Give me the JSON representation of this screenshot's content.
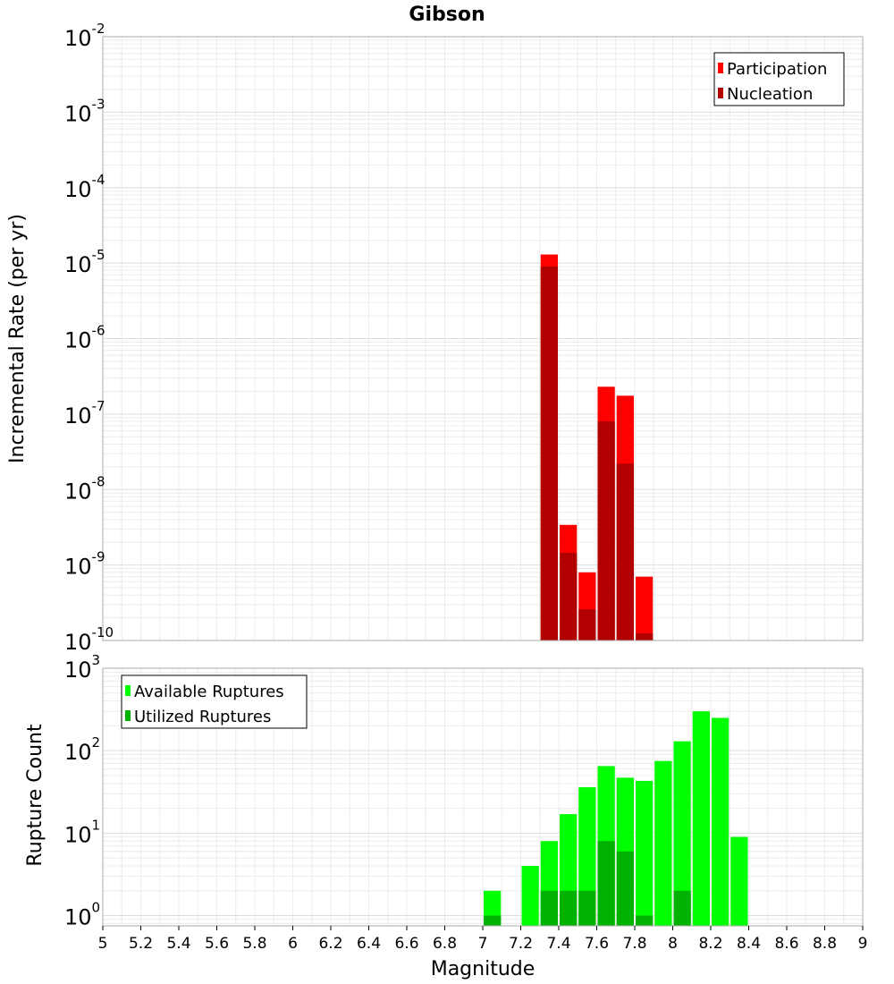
{
  "chart_data": [
    {
      "type": "bar",
      "title": "Gibson",
      "ylabel": "Incremental Rate (per yr)",
      "yscale": "log",
      "ylim": [
        1e-10,
        0.01
      ],
      "xlim": [
        5,
        9
      ],
      "grid": true,
      "legend_position": "top-right",
      "bin_width": 0.1,
      "y_tick_exponents": [
        "-10",
        "-9",
        "-8",
        "-7",
        "-6",
        "-5",
        "-4",
        "-3",
        "-2"
      ],
      "series": [
        {
          "name": "Participation",
          "color": "#ff0000",
          "x": [
            7.35,
            7.45,
            7.55,
            7.65,
            7.75,
            7.85
          ],
          "values": [
            1.3e-05,
            3.4e-09,
            8e-10,
            2.3e-07,
            1.75e-07,
            7e-10
          ]
        },
        {
          "name": "Nucleation",
          "color": "#b20000",
          "x": [
            7.35,
            7.45,
            7.55,
            7.65,
            7.75,
            7.85
          ],
          "values": [
            9e-06,
            1.45e-09,
            2.6e-10,
            8e-08,
            2.2e-08,
            1.25e-10
          ]
        }
      ]
    },
    {
      "type": "bar",
      "xlabel": "Magnitude",
      "ylabel": "Rupture Count",
      "yscale": "log",
      "ylim": [
        0.75,
        1000
      ],
      "xlim": [
        5,
        9
      ],
      "grid": true,
      "legend_position": "top-left",
      "bin_width": 0.1,
      "y_tick_exponents": [
        "0",
        "1",
        "2",
        "3"
      ],
      "x_ticks": [
        "5",
        "5.2",
        "5.4",
        "5.6",
        "5.8",
        "6",
        "6.2",
        "6.4",
        "6.6",
        "6.8",
        "7",
        "7.2",
        "7.4",
        "7.6",
        "7.8",
        "8",
        "8.2",
        "8.4",
        "8.6",
        "8.8",
        "9"
      ],
      "series": [
        {
          "name": "Available Ruptures",
          "color": "#00ff00",
          "x": [
            7.05,
            7.25,
            7.35,
            7.45,
            7.55,
            7.65,
            7.75,
            7.85,
            7.95,
            8.05,
            8.15,
            8.25,
            8.35
          ],
          "values": [
            2,
            4,
            8,
            17,
            36,
            65,
            47,
            43,
            75,
            130,
            300,
            250,
            9
          ]
        },
        {
          "name": "Utilized Ruptures",
          "color": "#00b200",
          "x": [
            7.05,
            7.35,
            7.45,
            7.55,
            7.65,
            7.75,
            7.85,
            8.05
          ],
          "values": [
            1,
            2,
            2,
            2,
            8,
            6,
            1,
            2
          ]
        }
      ]
    }
  ]
}
